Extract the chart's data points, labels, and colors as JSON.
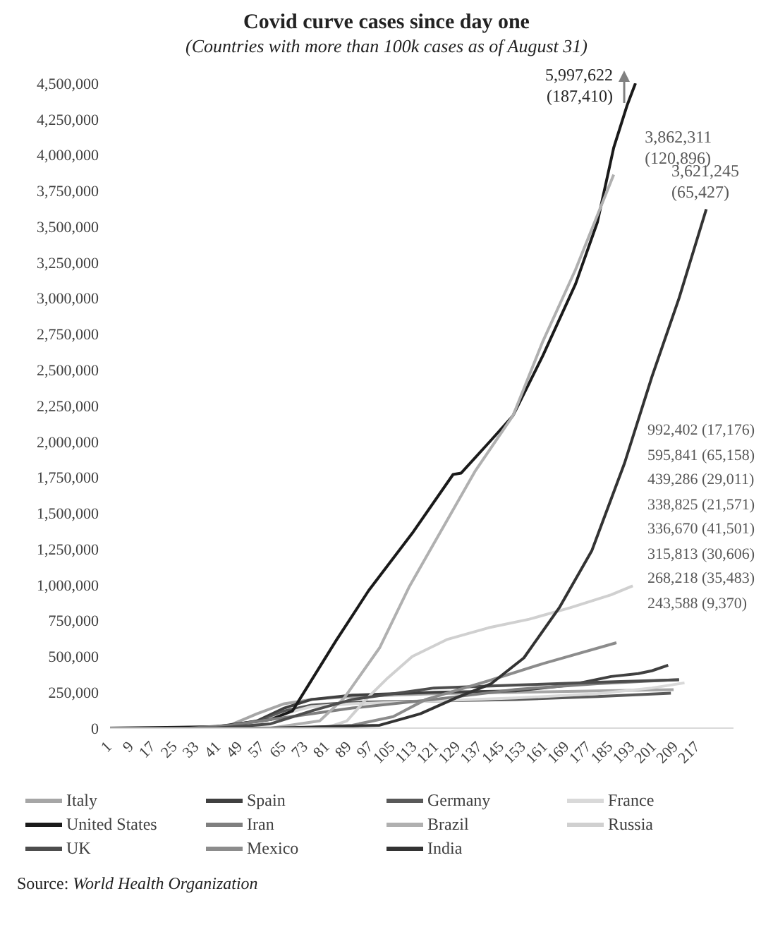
{
  "chart_data": {
    "type": "line",
    "title": "Covid curve cases since day one",
    "subtitle": "(Countries with more than 100k cases as of August 31)",
    "xlim": [
      1,
      230
    ],
    "xticks": [
      1,
      9,
      17,
      25,
      33,
      41,
      49,
      57,
      65,
      73,
      81,
      89,
      97,
      105,
      113,
      121,
      129,
      137,
      145,
      153,
      161,
      169,
      177,
      185,
      193,
      201,
      209,
      217
    ],
    "ylim": [
      0,
      4500000
    ],
    "yticks": [
      0,
      {
        "value": 250000,
        "label": "250,000"
      },
      {
        "value": 500000,
        "label": "500,000"
      },
      {
        "value": 750000,
        "label": "750,000"
      },
      {
        "value": 1000000,
        "label": "1,000,000"
      },
      {
        "value": 1250000,
        "label": "1,250,000"
      },
      {
        "value": 1500000,
        "label": "1,500,000"
      },
      {
        "value": 1750000,
        "label": "1,750,000"
      },
      {
        "value": 2000000,
        "label": "2,000,000"
      },
      {
        "value": 2250000,
        "label": "2,250,000"
      },
      {
        "value": 2500000,
        "label": "2,500,000"
      },
      {
        "value": 2750000,
        "label": "2,750,000"
      },
      {
        "value": 3000000,
        "label": "3,000,000"
      },
      {
        "value": 3250000,
        "label": "3,250,000"
      },
      {
        "value": 3500000,
        "label": "3,500,000"
      },
      {
        "value": 3750000,
        "label": "3,750,000"
      },
      {
        "value": 4000000,
        "label": "4,000,000"
      },
      {
        "value": 4250000,
        "label": "4,250,000"
      },
      {
        "value": 4500000,
        "label": "4,500,000"
      }
    ],
    "legend": "bottom",
    "marker": "none",
    "line_style": "solid",
    "series": [
      {
        "name": "Italy",
        "color": "#a6a6a6",
        "x": [
          1,
          35,
          45,
          55,
          65,
          75,
          90,
          120,
          150,
          180,
          208
        ],
        "values": [
          0,
          0,
          20000,
          100000,
          170000,
          200000,
          220000,
          240000,
          250000,
          260000,
          268218
        ]
      },
      {
        "name": "Spain",
        "color": "#404040",
        "x": [
          1,
          40,
          55,
          65,
          75,
          90,
          120,
          150,
          170,
          185,
          195,
          200,
          206
        ],
        "values": [
          0,
          0,
          50000,
          140000,
          200000,
          230000,
          250000,
          260000,
          300000,
          360000,
          380000,
          400000,
          439286
        ]
      },
      {
        "name": "Germany",
        "color": "#595959",
        "x": [
          1,
          40,
          55,
          65,
          75,
          90,
          120,
          150,
          180,
          207
        ],
        "values": [
          0,
          0,
          40000,
          120000,
          160000,
          180000,
          190000,
          200000,
          220000,
          243588
        ]
      },
      {
        "name": "France",
        "color": "#d9d9d9",
        "x": [
          1,
          40,
          55,
          65,
          75,
          90,
          120,
          150,
          180,
          200,
          212
        ],
        "values": [
          0,
          0,
          30000,
          100000,
          150000,
          170000,
          190000,
          210000,
          240000,
          280000,
          315813
        ]
      },
      {
        "name": "United States",
        "color": "#1a1a1a",
        "x": [
          1,
          40,
          60,
          68,
          84,
          96,
          112,
          127,
          130,
          141,
          149,
          160,
          172,
          180,
          186,
          191,
          194
        ],
        "values": [
          0,
          10000,
          60000,
          120000,
          610000,
          960000,
          1360000,
          1770000,
          1780000,
          2010000,
          2180000,
          2600000,
          3100000,
          3530000,
          4050000,
          4350000,
          4500000
        ]
      },
      {
        "name": "Iran",
        "color": "#7f7f7f",
        "x": [
          1,
          30,
          45,
          60,
          75,
          90,
          120,
          150,
          180,
          210
        ],
        "values": [
          0,
          0,
          20000,
          60000,
          100000,
          140000,
          200000,
          270000,
          310000,
          338825
        ]
      },
      {
        "name": "Brazil",
        "color": "#b0b0b0",
        "x": [
          1,
          60,
          78,
          87,
          100,
          111,
          123,
          135,
          149,
          160,
          172,
          186
        ],
        "values": [
          0,
          0,
          50000,
          210000,
          560000,
          990000,
          1390000,
          1790000,
          2180000,
          2700000,
          3200000,
          3862311
        ]
      },
      {
        "name": "Russia",
        "color": "#d0d0d0",
        "x": [
          1,
          80,
          88,
          95,
          103,
          112,
          125,
          140,
          155,
          170,
          185,
          193
        ],
        "values": [
          0,
          0,
          50000,
          200000,
          350000,
          500000,
          620000,
          700000,
          760000,
          840000,
          930000,
          992402
        ]
      },
      {
        "name": "UK",
        "color": "#4d4d4d",
        "x": [
          1,
          40,
          60,
          75,
          90,
          120,
          150,
          180,
          210
        ],
        "values": [
          0,
          0,
          30000,
          120000,
          200000,
          280000,
          300000,
          320000,
          336670
        ]
      },
      {
        "name": "Mexico",
        "color": "#8c8c8c",
        "x": [
          1,
          70,
          90,
          105,
          117,
          140,
          160,
          187
        ],
        "values": [
          0,
          0,
          20000,
          80000,
          200000,
          330000,
          450000,
          595841
        ]
      },
      {
        "name": "India",
        "color": "#333333",
        "x": [
          1,
          60,
          100,
          115,
          128,
          141,
          153,
          166,
          178,
          190,
          200,
          210,
          220
        ],
        "values": [
          0,
          0,
          20000,
          100000,
          210000,
          310000,
          490000,
          840000,
          1240000,
          1850000,
          2450000,
          3000000,
          3621245
        ]
      }
    ],
    "annotations": [
      {
        "text": "5,997,622\n(187,410)",
        "x": 194,
        "y": 4500000
      },
      {
        "text": "3,862,311\n(120,896)",
        "x": 186,
        "y": 3862311
      },
      {
        "text": "3,621,245\n(65,427)",
        "x": 220,
        "y": 3621245
      },
      "992,402 (17,176)",
      "595,841 (65,158)",
      "439,286 (29,011)",
      "338,825 (21,571)",
      "336,670 (41,501)",
      "315,813 (30,606)",
      "268,218 (35,483)",
      "243,588 (9,370)",
      "Source: World Health Organization"
    ]
  }
}
